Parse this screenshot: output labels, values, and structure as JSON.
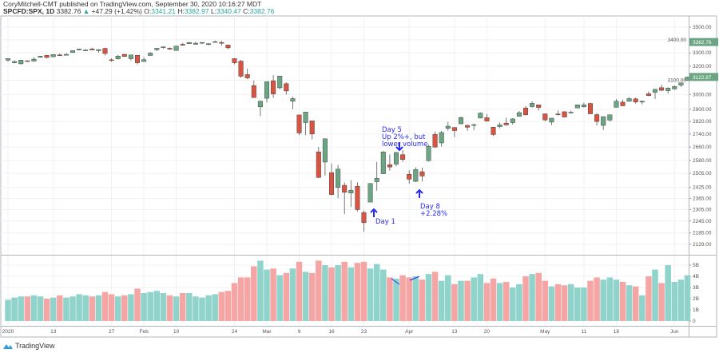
{
  "header": {
    "publisher_line": "CoryMitchell-CMT published on TradingView.com, September 30, 2020 10:16:27 MDT",
    "symbol": "SPCFD:SPX, 1D",
    "last": "3382.76",
    "change": "+47.29 (+1.42%)",
    "open_label": "O:",
    "open": "3341.21",
    "high_label": "H:",
    "high": "3382.97",
    "low_label": "L:",
    "low": "3340.47",
    "close_label": "C:",
    "close": "3382.76"
  },
  "colors": {
    "up": "#6ba583",
    "down": "#d75442",
    "vol_up": "#8fd3cb",
    "vol_down": "#f5a5a3",
    "annotation": "#2b2bf0",
    "price_tag": "#6ba583"
  },
  "price_axis": {
    "scale": "log",
    "ticks": [
      "3500.00",
      "3400.00",
      "3300.00",
      "3200.00",
      "3100.00",
      "3000.00",
      "2900.00",
      "2820.00",
      "2740.00",
      "2660.00",
      "2580.00",
      "2505.00",
      "2425.00",
      "2365.00",
      "2305.00",
      "2245.00",
      "2185.00",
      "2129.00"
    ],
    "tags": [
      {
        "label": "3382.76"
      },
      {
        "label": "3122.87"
      }
    ]
  },
  "volume_axis": {
    "ticks": [
      "5B",
      "4B",
      "3B",
      "2B",
      "1B",
      "0"
    ]
  },
  "time_axis": {
    "labels": [
      {
        "text": "2020",
        "date": "2020-01-02"
      },
      {
        "text": "13",
        "date": "2020-01-13"
      },
      {
        "text": "27",
        "date": "2020-01-27"
      },
      {
        "text": "Feb",
        "date": "2020-02-03"
      },
      {
        "text": "10",
        "date": "2020-02-10"
      },
      {
        "text": "24",
        "date": "2020-02-24"
      },
      {
        "text": "Mar",
        "date": "2020-03-02"
      },
      {
        "text": "9",
        "date": "2020-03-09"
      },
      {
        "text": "16",
        "date": "2020-03-16"
      },
      {
        "text": "23",
        "date": "2020-03-23"
      },
      {
        "text": "Apr",
        "date": "2020-04-01"
      },
      {
        "text": "13",
        "date": "2020-04-13"
      },
      {
        "text": "20",
        "date": "2020-04-20"
      },
      {
        "text": "May",
        "date": "2020-05-01"
      },
      {
        "text": "11",
        "date": "2020-05-11"
      },
      {
        "text": "18",
        "date": "2020-05-18"
      },
      {
        "text": "Jun",
        "date": "2020-06-01"
      }
    ]
  },
  "chart_data": {
    "type": "candlestick",
    "y_scale": "log",
    "ylim": [
      2129,
      3550
    ],
    "volume_ylim": [
      0,
      5.8
    ],
    "volume_unit": "B",
    "dates": [
      "2020-01-02",
      "2020-01-03",
      "2020-01-06",
      "2020-01-07",
      "2020-01-08",
      "2020-01-09",
      "2020-01-10",
      "2020-01-13",
      "2020-01-14",
      "2020-01-15",
      "2020-01-16",
      "2020-01-17",
      "2020-01-21",
      "2020-01-22",
      "2020-01-23",
      "2020-01-24",
      "2020-01-27",
      "2020-01-28",
      "2020-01-29",
      "2020-01-30",
      "2020-01-31",
      "2020-02-03",
      "2020-02-04",
      "2020-02-05",
      "2020-02-06",
      "2020-02-07",
      "2020-02-10",
      "2020-02-11",
      "2020-02-12",
      "2020-02-13",
      "2020-02-14",
      "2020-02-18",
      "2020-02-19",
      "2020-02-20",
      "2020-02-21",
      "2020-02-24",
      "2020-02-25",
      "2020-02-26",
      "2020-02-27",
      "2020-02-28",
      "2020-03-02",
      "2020-03-03",
      "2020-03-04",
      "2020-03-05",
      "2020-03-06",
      "2020-03-09",
      "2020-03-10",
      "2020-03-11",
      "2020-03-12",
      "2020-03-13",
      "2020-03-16",
      "2020-03-17",
      "2020-03-18",
      "2020-03-19",
      "2020-03-20",
      "2020-03-23",
      "2020-03-24",
      "2020-03-25",
      "2020-03-26",
      "2020-03-27",
      "2020-03-30",
      "2020-03-31",
      "2020-04-01",
      "2020-04-02",
      "2020-04-03",
      "2020-04-06",
      "2020-04-07",
      "2020-04-08",
      "2020-04-09",
      "2020-04-13",
      "2020-04-14",
      "2020-04-15",
      "2020-04-16",
      "2020-04-17",
      "2020-04-20",
      "2020-04-21",
      "2020-04-22",
      "2020-04-23",
      "2020-04-24",
      "2020-04-27",
      "2020-04-28",
      "2020-04-29",
      "2020-04-30",
      "2020-05-01",
      "2020-05-04",
      "2020-05-05",
      "2020-05-06",
      "2020-05-07",
      "2020-05-08",
      "2020-05-11",
      "2020-05-12",
      "2020-05-13",
      "2020-05-14",
      "2020-05-15",
      "2020-05-18",
      "2020-05-19",
      "2020-05-20",
      "2020-05-21",
      "2020-05-22",
      "2020-05-26",
      "2020-05-27",
      "2020-05-28",
      "2020-05-29",
      "2020-06-01",
      "2020-06-02",
      "2020-06-03"
    ],
    "ohlc": [
      [
        3245,
        3258,
        3235,
        3258
      ],
      [
        3226,
        3246,
        3222,
        3235
      ],
      [
        3218,
        3246,
        3214,
        3246
      ],
      [
        3241,
        3244,
        3233,
        3237
      ],
      [
        3238,
        3267,
        3236,
        3253
      ],
      [
        3267,
        3275,
        3263,
        3275
      ],
      [
        3281,
        3282,
        3260,
        3265
      ],
      [
        3271,
        3288,
        3268,
        3288
      ],
      [
        3285,
        3295,
        3278,
        3283
      ],
      [
        3282,
        3298,
        3280,
        3289
      ],
      [
        3302,
        3317,
        3302,
        3317
      ],
      [
        3323,
        3330,
        3318,
        3330
      ],
      [
        3321,
        3329,
        3316,
        3321
      ],
      [
        3330,
        3337,
        3320,
        3322
      ],
      [
        3316,
        3326,
        3302,
        3325
      ],
      [
        3334,
        3338,
        3280,
        3295
      ],
      [
        3248,
        3259,
        3234,
        3244
      ],
      [
        3255,
        3285,
        3250,
        3276
      ],
      [
        3289,
        3293,
        3271,
        3273
      ],
      [
        3256,
        3285,
        3242,
        3284
      ],
      [
        3282,
        3282,
        3214,
        3226
      ],
      [
        3235,
        3268,
        3235,
        3249
      ],
      [
        3280,
        3306,
        3280,
        3298
      ],
      [
        3324,
        3337,
        3313,
        3335
      ],
      [
        3344,
        3348,
        3333,
        3346
      ],
      [
        3335,
        3341,
        3322,
        3328
      ],
      [
        3318,
        3352,
        3318,
        3352
      ],
      [
        3365,
        3375,
        3355,
        3358
      ],
      [
        3370,
        3381,
        3369,
        3380
      ],
      [
        3365,
        3385,
        3361,
        3374
      ],
      [
        3379,
        3381,
        3367,
        3380
      ],
      [
        3369,
        3375,
        3357,
        3370
      ],
      [
        3380,
        3394,
        3379,
        3386
      ],
      [
        3380,
        3392,
        3354,
        3373
      ],
      [
        3360,
        3360,
        3328,
        3338
      ],
      [
        3257,
        3259,
        3215,
        3226
      ],
      [
        3238,
        3247,
        3118,
        3128
      ],
      [
        3140,
        3182,
        3108,
        3116
      ],
      [
        3062,
        3098,
        2977,
        2979
      ],
      [
        2916,
        2959,
        2855,
        2954
      ],
      [
        2974,
        3091,
        2946,
        3090
      ],
      [
        3096,
        3137,
        2977,
        3003
      ],
      [
        3046,
        3130,
        3034,
        3130
      ],
      [
        3075,
        3084,
        2999,
        3024
      ],
      [
        2954,
        2985,
        2901,
        2972
      ],
      [
        2863,
        2863,
        2734,
        2747
      ],
      [
        2813,
        2882,
        2734,
        2882
      ],
      [
        2825,
        2825,
        2707,
        2741
      ],
      [
        2631,
        2660,
        2478,
        2481
      ],
      [
        2570,
        2711,
        2492,
        2711
      ],
      [
        2509,
        2562,
        2381,
        2386
      ],
      [
        2425,
        2553,
        2367,
        2529
      ],
      [
        2437,
        2453,
        2281,
        2398
      ],
      [
        2394,
        2466,
        2319,
        2409
      ],
      [
        2432,
        2453,
        2295,
        2305
      ],
      [
        2290,
        2300,
        2192,
        2237
      ],
      [
        2345,
        2449,
        2345,
        2447
      ],
      [
        2457,
        2571,
        2407,
        2476
      ],
      [
        2502,
        2637,
        2500,
        2630
      ],
      [
        2555,
        2615,
        2520,
        2541
      ],
      [
        2558,
        2631,
        2545,
        2627
      ],
      [
        2614,
        2641,
        2571,
        2585
      ],
      [
        2499,
        2522,
        2447,
        2471
      ],
      [
        2459,
        2540,
        2455,
        2527
      ],
      [
        2514,
        2538,
        2459,
        2489
      ],
      [
        2578,
        2676,
        2574,
        2664
      ],
      [
        2738,
        2756,
        2657,
        2659
      ],
      [
        2685,
        2760,
        2663,
        2750
      ],
      [
        2776,
        2818,
        2762,
        2790
      ],
      [
        2782,
        2783,
        2721,
        2762
      ],
      [
        2805,
        2852,
        2805,
        2846
      ],
      [
        2795,
        2801,
        2761,
        2783
      ],
      [
        2799,
        2807,
        2764,
        2800
      ],
      [
        2842,
        2880,
        2842,
        2875
      ],
      [
        2845,
        2868,
        2820,
        2823
      ],
      [
        2784,
        2785,
        2728,
        2737
      ],
      [
        2787,
        2815,
        2776,
        2799
      ],
      [
        2810,
        2844,
        2794,
        2798
      ],
      [
        2813,
        2842,
        2800,
        2837
      ],
      [
        2854,
        2888,
        2852,
        2878
      ],
      [
        2909,
        2922,
        2860,
        2863
      ],
      [
        2918,
        2954,
        2912,
        2940
      ],
      [
        2930,
        2930,
        2892,
        2912
      ],
      [
        2870,
        2870,
        2822,
        2830
      ],
      [
        2816,
        2843,
        2797,
        2842
      ],
      [
        2869,
        2892,
        2859,
        2868
      ],
      [
        2884,
        2887,
        2848,
        2849
      ],
      [
        2879,
        2891,
        2873,
        2881
      ],
      [
        2909,
        2932,
        2908,
        2930
      ],
      [
        2916,
        2945,
        2912,
        2930
      ],
      [
        2939,
        2945,
        2869,
        2870
      ],
      [
        2865,
        2875,
        2794,
        2820
      ],
      [
        2795,
        2852,
        2766,
        2852
      ],
      [
        2829,
        2865,
        2820,
        2864
      ],
      [
        2913,
        2968,
        2913,
        2954
      ],
      [
        2948,
        2965,
        2922,
        2923
      ],
      [
        2953,
        2981,
        2953,
        2972
      ],
      [
        2970,
        2979,
        2938,
        2949
      ],
      [
        2948,
        2957,
        2933,
        2955
      ],
      [
        3005,
        3021,
        2988,
        2992
      ],
      [
        3015,
        3036,
        2969,
        3036
      ],
      [
        3047,
        3068,
        3023,
        3029
      ],
      [
        3026,
        3050,
        3007,
        3044
      ],
      [
        3038,
        3063,
        3032,
        3056
      ],
      [
        3065,
        3081,
        3052,
        3081
      ],
      [
        3098,
        3124,
        3097,
        3122
      ]
    ],
    "volume": [
      1.9,
      2.1,
      2.2,
      2.2,
      2.3,
      2.2,
      2.0,
      2.1,
      2.3,
      2.1,
      2.2,
      2.4,
      2.3,
      2.2,
      2.3,
      2.6,
      2.4,
      2.2,
      2.3,
      2.4,
      2.9,
      2.5,
      2.6,
      2.7,
      2.5,
      2.3,
      2.2,
      2.5,
      2.5,
      2.2,
      2.1,
      2.3,
      2.4,
      2.6,
      2.7,
      3.4,
      3.9,
      3.9,
      4.9,
      5.4,
      4.6,
      4.7,
      4.1,
      4.3,
      4.7,
      5.3,
      4.4,
      4.3,
      5.4,
      5.0,
      4.8,
      5.0,
      5.3,
      4.8,
      5.2,
      5.3,
      4.7,
      5.1,
      4.6,
      3.9,
      3.8,
      4.1,
      3.9,
      4.0,
      3.7,
      4.2,
      4.4,
      3.6,
      4.1,
      3.3,
      3.6,
      3.6,
      3.9,
      4.2,
      3.4,
      3.8,
      3.4,
      3.5,
      3.0,
      3.3,
      4.0,
      4.2,
      4.3,
      3.6,
      3.1,
      3.3,
      3.2,
      3.3,
      3.0,
      3.0,
      3.6,
      3.9,
      3.7,
      3.9,
      3.7,
      3.5,
      3.2,
      3.1,
      2.3,
      4.0,
      4.6,
      3.4,
      5.0,
      3.5,
      3.7,
      4.1
    ],
    "annotations": [
      {
        "lines": [
          "Day 1"
        ],
        "date": "2020-03-24",
        "arrow": "up"
      },
      {
        "lines": [
          "Day 5",
          "Up 2%+, but",
          "lower volume"
        ],
        "date": "2020-03-30",
        "arrow": "down"
      },
      {
        "lines": [
          "Day 8",
          "+2.28%"
        ],
        "date": "2020-04-02",
        "arrow": "up"
      }
    ]
  },
  "footer": {
    "brand": "TradingView"
  }
}
